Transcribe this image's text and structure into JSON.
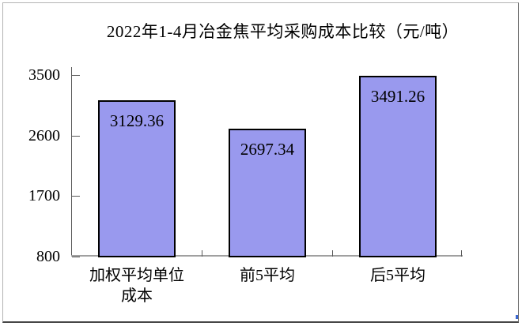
{
  "window": {
    "background": "#ffffff",
    "frame_border_light": "#b4b4b4",
    "frame_border_dark": "#474747"
  },
  "chart_data": {
    "type": "bar",
    "title": "2022年1-4月冶金焦平均采购成本比较（元/吨）",
    "categories": [
      "加权平均单位成本",
      "前5平均",
      "后5平均"
    ],
    "values": [
      3129.36,
      2697.34,
      3491.26
    ],
    "value_labels": [
      "3129.36",
      "2697.34",
      "3491.26"
    ],
    "xlabel": "",
    "ylabel": "",
    "ylim": [
      800,
      3500
    ],
    "yticks": [
      3500,
      2600,
      1700,
      800
    ],
    "grid": false,
    "legend": "none",
    "bar_fill": "#9999ee",
    "bar_border": "#000000",
    "axis_color": "#595959",
    "baseline_color": "#a0a0a0"
  }
}
